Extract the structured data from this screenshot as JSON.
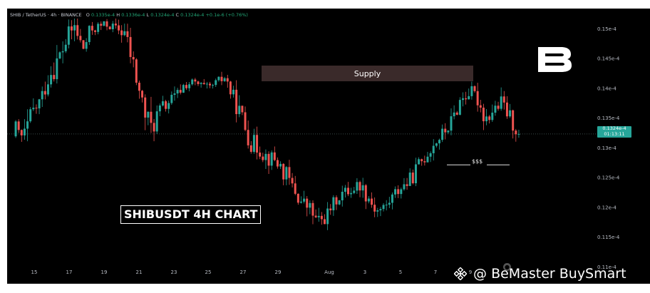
{
  "header": {
    "pair": "SHIB / TetherUS · 4h · BINANCE",
    "ohlc": [
      {
        "lbl": "O",
        "val": "0.1335e-4"
      },
      {
        "lbl": "H",
        "val": "0.1336e-4"
      },
      {
        "lbl": "L",
        "val": "0.1324e-4"
      },
      {
        "lbl": "C",
        "val": "0.1324e-4 +0.1e-6 (+0.76%)"
      }
    ]
  },
  "annotations": {
    "supply": "Supply",
    "liquidity": "$$$",
    "chart_label": "SHIBUSDT 4H CHART"
  },
  "price_tag": {
    "price": "0.1324e-4",
    "countdown": "01:13:11"
  },
  "watermark": "@ BeMaster BuySmart",
  "colors": {
    "up": "#26a69a",
    "down": "#ef5350",
    "background": "#000000",
    "supply_zone": "#3a2a2a"
  },
  "chart_data": {
    "type": "candlestick",
    "title": "SHIBUSDT 4H CHART",
    "y_tick_labels": [
      "0.15e-4",
      "0.145e-4",
      "0.14e-4",
      "0.135e-4",
      "0.13e-4",
      "0.125e-4",
      "0.12e-4",
      "0.115e-4",
      "0.11e-4"
    ],
    "y_tick_values": [
      0.15,
      0.145,
      0.14,
      0.135,
      0.13,
      0.125,
      0.12,
      0.115,
      0.11
    ],
    "x_tick_labels": [
      "15",
      "17",
      "19",
      "21",
      "23",
      "25",
      "27",
      "29",
      "Aug",
      "3",
      "5",
      "7",
      "9"
    ],
    "ylim": [
      0.1095,
      0.1518
    ],
    "y_unit": "e-4",
    "last_price": 0.1324,
    "current_price_line": 0.1324,
    "supply_zone": {
      "from": 0.1404,
      "to": 0.1428
    },
    "liquidity_level": 0.1272,
    "path": [
      [
        0.132,
        0.1345,
        0.135
      ],
      [
        0.1318,
        0.136,
        0.1295
      ],
      [
        0.136,
        0.1395,
        0.134
      ],
      [
        0.138,
        0.142,
        0.137
      ],
      [
        0.1425,
        0.146,
        0.141
      ],
      [
        0.1445,
        0.149,
        0.142
      ],
      [
        0.148,
        0.1515,
        0.146
      ],
      [
        0.1505,
        0.1518,
        0.1465
      ],
      [
        0.1465,
        0.15,
        0.144
      ],
      [
        0.15,
        0.1518,
        0.148
      ],
      [
        0.1505,
        0.1515,
        0.149
      ],
      [
        0.1508,
        0.1518,
        0.1495
      ],
      [
        0.15,
        0.1518,
        0.149
      ],
      [
        0.1495,
        0.1515,
        0.147
      ],
      [
        0.144,
        0.148,
        0.142
      ],
      [
        0.138,
        0.142,
        0.136
      ],
      [
        0.133,
        0.1385,
        0.13
      ],
      [
        0.136,
        0.138,
        0.134
      ],
      [
        0.1375,
        0.14,
        0.1355
      ],
      [
        0.1385,
        0.14,
        0.1365
      ],
      [
        0.1405,
        0.1415,
        0.139
      ],
      [
        0.141,
        0.142,
        0.1395
      ],
      [
        0.1405,
        0.142,
        0.1395
      ],
      [
        0.14,
        0.1412,
        0.139
      ],
      [
        0.141,
        0.1425,
        0.14
      ],
      [
        0.142,
        0.1432,
        0.1405
      ],
      [
        0.138,
        0.142,
        0.137
      ],
      [
        0.135,
        0.1385,
        0.133
      ],
      [
        0.131,
        0.135,
        0.1295
      ],
      [
        0.13,
        0.132,
        0.128
      ],
      [
        0.1285,
        0.131,
        0.1265
      ],
      [
        0.128,
        0.13,
        0.1265
      ],
      [
        0.126,
        0.129,
        0.124
      ],
      [
        0.1235,
        0.126,
        0.122
      ],
      [
        0.121,
        0.124,
        0.1195
      ],
      [
        0.12,
        0.1225,
        0.118
      ],
      [
        0.1175,
        0.12,
        0.116
      ],
      [
        0.1185,
        0.1205,
        0.117
      ],
      [
        0.121,
        0.1225,
        0.1195
      ],
      [
        0.1225,
        0.124,
        0.121
      ],
      [
        0.123,
        0.1245,
        0.1215
      ],
      [
        0.124,
        0.126,
        0.1225
      ],
      [
        0.122,
        0.1245,
        0.12
      ],
      [
        0.1195,
        0.122,
        0.1185
      ],
      [
        0.12,
        0.122,
        0.1185
      ],
      [
        0.122,
        0.124,
        0.1205
      ],
      [
        0.1235,
        0.125,
        0.122
      ],
      [
        0.1245,
        0.127,
        0.123
      ],
      [
        0.127,
        0.13,
        0.126
      ],
      [
        0.129,
        0.131,
        0.1275
      ],
      [
        0.131,
        0.133,
        0.1295
      ],
      [
        0.1325,
        0.1345,
        0.131
      ],
      [
        0.1345,
        0.1375,
        0.1335
      ],
      [
        0.138,
        0.1405,
        0.1365
      ],
      [
        0.1395,
        0.141,
        0.137
      ],
      [
        0.1385,
        0.14,
        0.136
      ],
      [
        0.135,
        0.138,
        0.1335
      ],
      [
        0.1365,
        0.1385,
        0.1345
      ],
      [
        0.1375,
        0.1395,
        0.135
      ],
      [
        0.135,
        0.1372,
        0.133
      ],
      [
        0.1324,
        0.136,
        0.1315
      ]
    ]
  }
}
